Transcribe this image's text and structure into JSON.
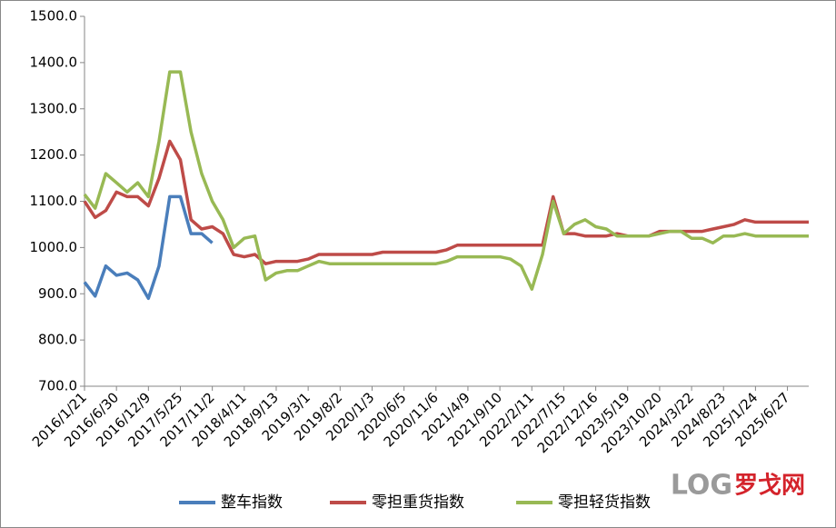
{
  "chart_data": {
    "type": "line",
    "categories": [
      "2016/1/21",
      null,
      null,
      "2016/6/30",
      null,
      null,
      "2016/12/9",
      null,
      null,
      "2017/5/25",
      null,
      null,
      "2017/11/2",
      null,
      null,
      "2018/4/11",
      null,
      null,
      "2018/9/13",
      null,
      null,
      "2019/3/1",
      null,
      null,
      "2019/8/2",
      null,
      null,
      "2020/1/3",
      null,
      null,
      "2020/6/5",
      null,
      null,
      "2020/11/6",
      null,
      null,
      "2021/4/9",
      null,
      null,
      "2021/9/10",
      null,
      null,
      "2022/2/11",
      null,
      null,
      "2022/7/15",
      null,
      null,
      "2022/12/16",
      null,
      null,
      "2023/5/19",
      null,
      null,
      "2023/10/20",
      null,
      null,
      "2024/3/22",
      null,
      null,
      "2024/8/23",
      null,
      null,
      "2025/1/24",
      null,
      null,
      "2025/6/27",
      null,
      null
    ],
    "series": [
      {
        "name": "整车指数",
        "color": "#4a7ebb",
        "values": [
          925,
          895,
          960,
          940,
          945,
          930,
          890,
          960,
          1110,
          1110,
          1030,
          1030,
          1010,
          null,
          null,
          null,
          null,
          null,
          null,
          null,
          null,
          null,
          null,
          null,
          null,
          null,
          null,
          null,
          null,
          null,
          null,
          null,
          null,
          null,
          null,
          null,
          null,
          null,
          null,
          null,
          null,
          null,
          null,
          null,
          null,
          null,
          null,
          null,
          null,
          null,
          null,
          null,
          null,
          null,
          null,
          null,
          null,
          null,
          null,
          null,
          null,
          null,
          null,
          null,
          null,
          null,
          null,
          null,
          null
        ]
      },
      {
        "name": "零担重货指数",
        "color": "#be4b48",
        "values": [
          1100,
          1065,
          1080,
          1120,
          1110,
          1110,
          1090,
          1150,
          1230,
          1190,
          1060,
          1040,
          1045,
          1030,
          985,
          980,
          985,
          965,
          970,
          970,
          970,
          975,
          985,
          985,
          985,
          985,
          985,
          985,
          990,
          990,
          990,
          990,
          990,
          990,
          995,
          1005,
          1005,
          1005,
          1005,
          1005,
          1005,
          1005,
          1005,
          1005,
          1110,
          1030,
          1030,
          1025,
          1025,
          1025,
          1030,
          1025,
          1025,
          1025,
          1035,
          1035,
          1035,
          1035,
          1035,
          1040,
          1045,
          1050,
          1060,
          1055,
          1055,
          1055,
          1055,
          1055,
          1055
        ]
      },
      {
        "name": "零担轻货指数",
        "color": "#98b954",
        "values": [
          1115,
          1085,
          1160,
          1140,
          1120,
          1140,
          1110,
          1230,
          1380,
          1380,
          1250,
          1160,
          1100,
          1060,
          1000,
          1020,
          1025,
          930,
          945,
          950,
          950,
          960,
          970,
          965,
          965,
          965,
          965,
          965,
          965,
          965,
          965,
          965,
          965,
          965,
          970,
          980,
          980,
          980,
          980,
          980,
          975,
          960,
          910,
          985,
          1100,
          1030,
          1050,
          1060,
          1045,
          1040,
          1025,
          1025,
          1025,
          1025,
          1030,
          1035,
          1035,
          1020,
          1020,
          1010,
          1025,
          1025,
          1030,
          1025,
          1025,
          1025,
          1025,
          1025,
          1025
        ]
      }
    ],
    "ylim": [
      700,
      1500
    ],
    "yticks": [
      {
        "value": 700,
        "label": "700.0"
      },
      {
        "value": 800,
        "label": "800.0"
      },
      {
        "value": 900,
        "label": "900.0"
      },
      {
        "value": 1000,
        "label": "1000.0"
      },
      {
        "value": 1100,
        "label": "1100.0"
      },
      {
        "value": 1200,
        "label": "1200.0"
      },
      {
        "value": 1300,
        "label": "1300.0"
      },
      {
        "value": 1400,
        "label": "1400.0"
      },
      {
        "value": 1500,
        "label": "1500.0"
      }
    ],
    "grid": false,
    "legend": "bottom",
    "watermark": {
      "mark": "LOG",
      "name": "罗戈网"
    }
  }
}
